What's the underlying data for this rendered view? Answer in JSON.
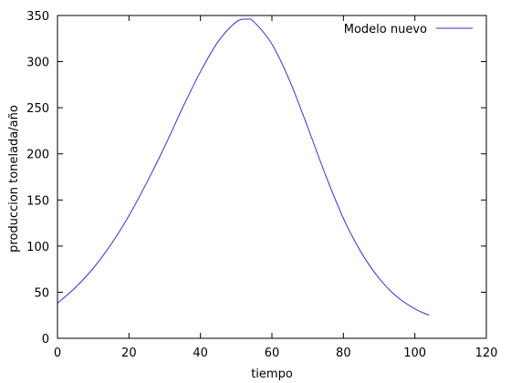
{
  "chart_data": {
    "type": "line",
    "title": "",
    "xlabel": "tiempo",
    "ylabel": "produccion tonelada/año",
    "xlim": [
      0,
      120
    ],
    "ylim": [
      0,
      350
    ],
    "xticks": [
      0,
      20,
      40,
      60,
      80,
      100,
      120
    ],
    "yticks": [
      0,
      50,
      100,
      150,
      200,
      250,
      300,
      350
    ],
    "grid": false,
    "legend": "top-right",
    "series": [
      {
        "name": "Modelo nuevo",
        "color": "#3333cc",
        "x": [
          0,
          5,
          10,
          15,
          20,
          25,
          30,
          35,
          40,
          45,
          50,
          53,
          55,
          60,
          65,
          70,
          75,
          80,
          85,
          90,
          95,
          100,
          104
        ],
        "y": [
          38,
          55,
          76,
          102,
          133,
          169,
          208,
          250,
          289,
          322,
          343,
          346,
          343,
          319,
          279,
          229,
          177,
          130,
          93,
          65,
          45,
          32,
          25
        ]
      }
    ]
  }
}
